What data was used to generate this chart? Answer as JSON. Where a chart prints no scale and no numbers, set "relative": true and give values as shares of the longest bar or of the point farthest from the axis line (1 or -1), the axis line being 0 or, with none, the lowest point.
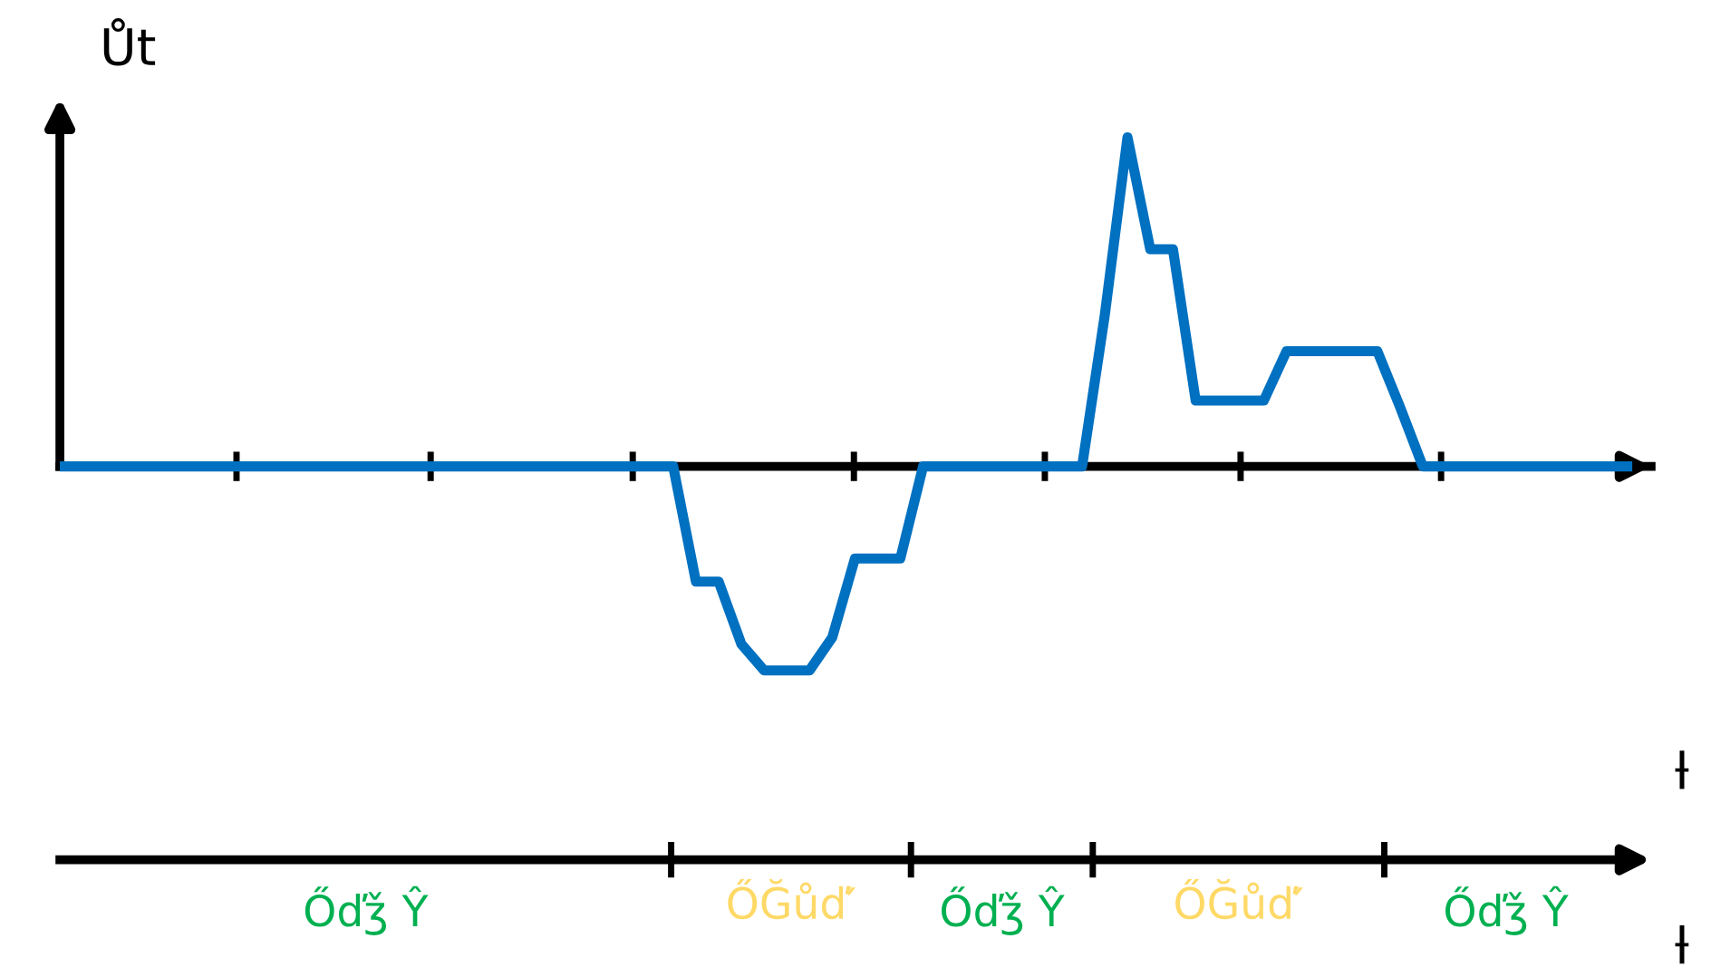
{
  "chart_data": [
    {
      "type": "line",
      "ylabel": "Ůt",
      "xlabel": "ƚ",
      "relative": true,
      "categories": [
        null,
        null,
        null,
        null,
        null,
        null,
        null,
        null,
        null,
        null,
        null,
        null,
        null,
        null,
        null,
        null,
        null,
        null,
        null,
        null,
        null,
        null,
        null,
        null,
        null,
        null,
        null,
        null,
        null,
        null,
        null,
        null,
        null,
        null,
        null,
        null,
        null,
        null,
        null,
        null,
        null,
        null,
        null,
        null,
        null,
        null,
        null,
        null,
        null,
        null,
        null,
        null,
        null,
        null,
        null,
        null,
        null,
        null,
        null,
        null,
        null,
        null,
        null,
        null,
        null,
        null,
        null,
        null,
        null,
        null
      ],
      "series": [
        {
          "color": "#0070c0",
          "values": [
            0,
            0,
            0,
            0,
            0,
            0,
            0,
            0,
            0,
            0,
            0,
            0,
            0,
            0,
            0,
            0,
            0,
            0,
            0,
            0,
            0,
            0,
            0,
            0,
            0,
            0,
            0,
            0,
            -0.35,
            -0.35,
            -0.54,
            -0.62,
            -0.62,
            -0.62,
            -0.52,
            -0.28,
            -0.28,
            -0.28,
            0,
            0,
            0,
            0,
            0,
            0,
            0,
            0,
            0.46,
            1.0,
            0.66,
            0.66,
            0.2,
            0.2,
            0.2,
            0.2,
            0.35,
            0.35,
            0.35,
            0.35,
            0.35,
            0.18,
            0,
            0,
            0,
            0,
            0,
            0,
            0,
            0,
            0,
            0
          ]
        }
      ],
      "marker": "none",
      "line_style": "solid"
    },
    {
      "type": "other",
      "xlabel": "ƚ",
      "categories": [
        "Őďǯ Ŷ",
        "ŐĞůď′",
        "Őďǯ Ŷ",
        "ŐĞůď′",
        "Őďǯ Ŷ"
      ],
      "colors": [
        "#00b050",
        "#ffd966",
        "#00b050",
        "#ffd966",
        "#00b050"
      ]
    }
  ]
}
